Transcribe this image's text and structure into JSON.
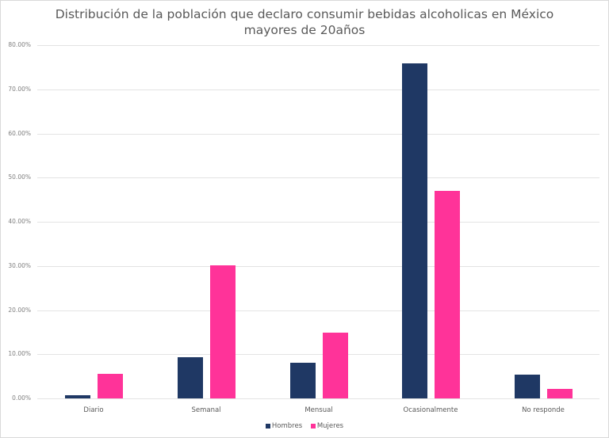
{
  "chart_data": {
    "type": "bar",
    "title": "Distribución de la población que declaro consumir bebidas alcoholicas en México mayores de 20años",
    "title_lines": [
      "Distribución de la población que declaro consumir bebidas alcoholicas en México",
      "mayores de 20años"
    ],
    "categories": [
      "Diario",
      "Semanal",
      "Mensual",
      "Ocasionalmente",
      "No responde"
    ],
    "series": [
      {
        "name": "Hombres",
        "color": "#1f3864",
        "values": [
          0.8,
          9.4,
          8.0,
          75.8,
          5.4
        ]
      },
      {
        "name": "Mujeres",
        "color": "#ff3399",
        "values": [
          5.6,
          30.2,
          14.8,
          47.0,
          2.1
        ]
      }
    ],
    "xlabel": "",
    "ylabel": "",
    "ylim": [
      0,
      80
    ],
    "yticks": [
      "0.00%",
      "10.00%",
      "20.00%",
      "30.00%",
      "40.00%",
      "50.00%",
      "60.00%",
      "70.00%",
      "80.00%"
    ],
    "grid": true,
    "legend_position": "bottom",
    "value_format": "percent"
  }
}
